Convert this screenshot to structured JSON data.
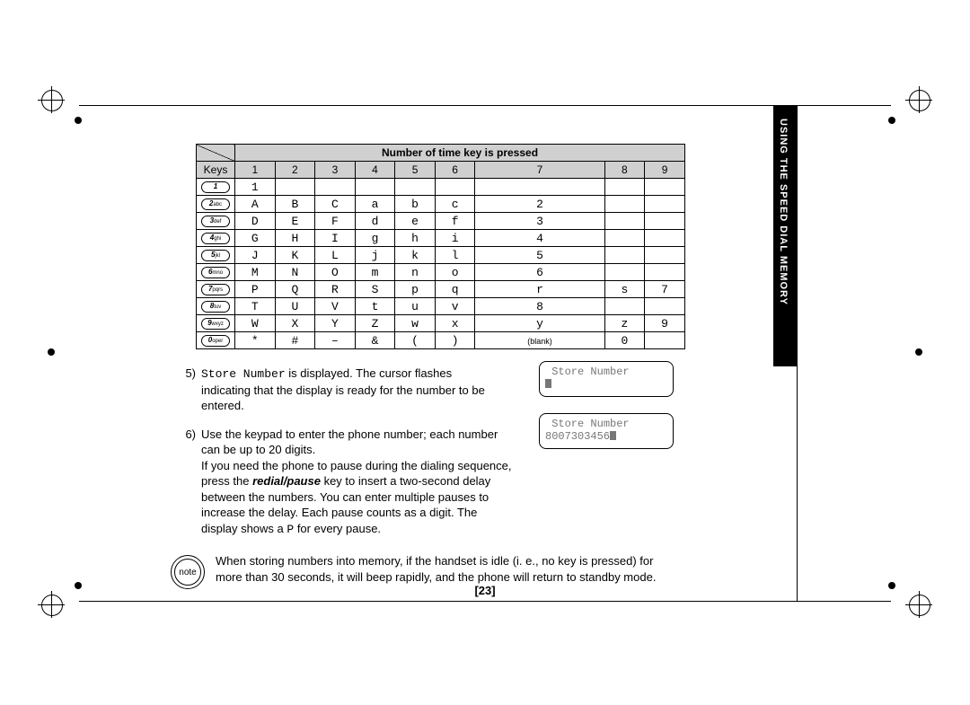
{
  "table": {
    "header_title": "Number of time key is pressed",
    "keys_label": "Keys",
    "col_headers": [
      "1",
      "2",
      "3",
      "4",
      "5",
      "6",
      "7",
      "8",
      "9"
    ],
    "rows": [
      {
        "key": "1",
        "sub": "",
        "cells": [
          "1",
          "",
          "",
          "",
          "",
          "",
          "",
          "",
          ""
        ]
      },
      {
        "key": "2",
        "sub": "abc",
        "cells": [
          "A",
          "B",
          "C",
          "a",
          "b",
          "c",
          "2",
          "",
          ""
        ]
      },
      {
        "key": "3",
        "sub": "def",
        "cells": [
          "D",
          "E",
          "F",
          "d",
          "e",
          "f",
          "3",
          "",
          ""
        ]
      },
      {
        "key": "4",
        "sub": "ghi",
        "cells": [
          "G",
          "H",
          "I",
          "g",
          "h",
          "i",
          "4",
          "",
          ""
        ]
      },
      {
        "key": "5",
        "sub": "jkl",
        "cells": [
          "J",
          "K",
          "L",
          "j",
          "k",
          "l",
          "5",
          "",
          ""
        ]
      },
      {
        "key": "6",
        "sub": "mno",
        "cells": [
          "M",
          "N",
          "O",
          "m",
          "n",
          "o",
          "6",
          "",
          ""
        ]
      },
      {
        "key": "7",
        "sub": "pqrs",
        "cells": [
          "P",
          "Q",
          "R",
          "S",
          "p",
          "q",
          "r",
          "s",
          "7"
        ]
      },
      {
        "key": "8",
        "sub": "tuv",
        "cells": [
          "T",
          "U",
          "V",
          "t",
          "u",
          "v",
          "8",
          "",
          ""
        ]
      },
      {
        "key": "9",
        "sub": "wxyz",
        "cells": [
          "W",
          "X",
          "Y",
          "Z",
          "w",
          "x",
          "y",
          "z",
          "9"
        ]
      },
      {
        "key": "0",
        "sub": "oper",
        "cells": [
          "*",
          "#",
          "–",
          "&",
          "(",
          ")",
          "(blank)",
          "0",
          ""
        ]
      }
    ]
  },
  "item5": {
    "num": "5)",
    "mono": "Store Number",
    "rest": " is displayed. The cursor flashes indicating that the display is ready for the number to be entered."
  },
  "item6": {
    "num": "6)",
    "line1": "Use the keypad to enter the phone number; each number can be up to 20 digits.",
    "line2a": "If you need the phone to pause during the dialing sequence, press the ",
    "redial": "redial/pause",
    "line2b": " key to insert a two-second delay between the numbers. You can enter multiple pauses to increase the delay. Each pause counts as a digit. The display shows a ",
    "pchar": "P",
    "line2c": " for every pause."
  },
  "note": {
    "label": "note",
    "text": "When storing numbers into memory, if the handset is idle (i. e., no key is pressed) for more than 30 seconds, it will beep rapidly, and the phone will return to standby mode."
  },
  "lcd1": {
    "title": "Store Number"
  },
  "lcd2": {
    "title": "Store Number",
    "num": "8007303456"
  },
  "pagenum": "[23]",
  "sidetab": "USING THE SPEED DIAL MEMORY"
}
